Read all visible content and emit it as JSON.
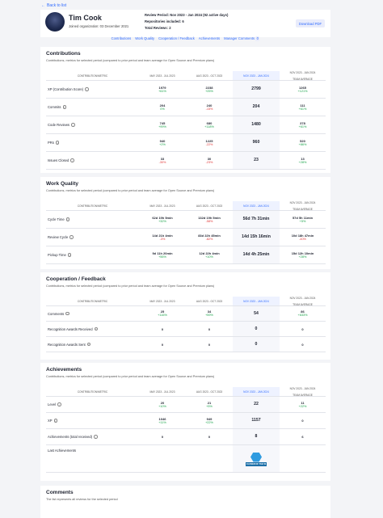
{
  "nav": {
    "back_label": "Back to list"
  },
  "profile": {
    "name": "Tim Cook",
    "joined": "Joined organization: 03 December 2021",
    "review_period_label": "Review Period:",
    "review_period_value": "Nov 2023 - Jan 2024 (92 active days)",
    "repositories_label": "Repositories included:",
    "repositories_value": "6",
    "total_reviews_label": "Total Reviews:",
    "total_reviews_value": "2",
    "download_label": "Download PDF"
  },
  "tabs": [
    {
      "label": "Contributions"
    },
    {
      "label": "Work Quality"
    },
    {
      "label": "Cooperation / Feedback"
    },
    {
      "label": "Achievements"
    },
    {
      "label": "Manager Comments",
      "badge": "0"
    }
  ],
  "columns": {
    "metric": "CONTRIBUTION/METRIC",
    "p1": "MAY 2023 - JUL 2023",
    "p2": "AUG 2023 - OCT 2023",
    "p3": "NOV 2023 - JAN 2024",
    "p4a": "NOV 2023 - JAN 2024",
    "p4b": "TEAM AVERAGE"
  },
  "sections": {
    "contributions": {
      "title": "Contributions",
      "subtitle": "Contributions, metrics for selected period (compared to prior period and team average for Open Source and Premium plans)",
      "rows": [
        {
          "label": "XP (Contribution Score)",
          "p1": "1979",
          "p1d": "+61%",
          "p2": "2238",
          "p2d": "+25%",
          "p3": "2799",
          "p4": "1265",
          "p4d": "+121%"
        },
        {
          "label": "Commits",
          "p1": "204",
          "p1d": "0%",
          "p2": "240",
          "p2d": "-15%",
          "p3": "204",
          "p4": "111",
          "p4d": "+61%"
        },
        {
          "label": "Code Reviews",
          "p1": "745",
          "p1d": "+99%",
          "p2": "680",
          "p2d": "+118%",
          "p3": "1480",
          "p4": "378",
          "p4d": "+61%"
        },
        {
          "label": "PRs",
          "p1": "940",
          "p1d": "+2%",
          "p2": "1225",
          "p2d": "-22%",
          "p3": "960",
          "p4": "520",
          "p4d": "+86%"
        },
        {
          "label": "Issues Closed",
          "p1": "33",
          "p1d": "-30%",
          "p2": "30",
          "p2d": "-23%",
          "p3": "23",
          "p4": "13",
          "p4d": "+28%"
        }
      ]
    },
    "quality": {
      "title": "Work Quality",
      "subtitle": "Contributions, metrics for selected period (compared to prior period and team average for Open Source and Premium plans)",
      "rows": [
        {
          "label": "Cycle Time",
          "p1": "62d 19h 5min",
          "p1d": "+32%",
          "p2": "132d 19h 5min",
          "p2d": "-58%",
          "p3": "56d 7h 31min",
          "p4": "57d 5h 11min",
          "p4d": "+5%"
        },
        {
          "label": "Review Cycle",
          "p1": "14d 21h 4min",
          "p1d": "-3%",
          "p2": "83d 22h 45min",
          "p2d": "-82%",
          "p3": "14d 15h 16min",
          "p4": "10d 18h 47min",
          "p4d": "-40%"
        },
        {
          "label": "Pickup Time",
          "p1": "9d 11h 20min",
          "p1d": "+56%",
          "p2": "12d 22h 4min",
          "p2d": "+10%",
          "p3": "14d 4h 25min",
          "p4": "15d 12h 10min",
          "p4d": "+28%"
        }
      ]
    },
    "cooperation": {
      "title": "Cooperation / Feedback",
      "subtitle": "Contributions, metrics for selected period (compared to prior period and team average for Open Source and Premium plans)",
      "rows": [
        {
          "label": "Comments",
          "p1": "25",
          "p1d": "+116%",
          "p2": "34",
          "p2d": "+59%",
          "p3": "54",
          "p4": "86",
          "p4d": "+633%"
        },
        {
          "label": "Recognition Awards Received",
          "p1": "0",
          "p1d": "",
          "p2": "0",
          "p2d": "",
          "p3": "0",
          "p4": "0",
          "p4d": ""
        },
        {
          "label": "Recognition Awards Sent",
          "p1": "0",
          "p1d": "",
          "p2": "0",
          "p2d": "",
          "p3": "0",
          "p4": "0",
          "p4d": ""
        }
      ]
    },
    "achievements": {
      "title": "Achievements",
      "subtitle": "Contributions, metrics for selected period (compared to prior period and team average for Open Source and Premium plans)",
      "rows": [
        {
          "label": "Level",
          "p1": "20",
          "p1d": "+10%",
          "p2": "21",
          "p2d": "+5%",
          "p3": "22",
          "p4": "11",
          "p4d": "+22%"
        },
        {
          "label": "XP",
          "p1": "1046",
          "p1d": "+11%",
          "p2": "949",
          "p2d": "+22%",
          "p3": "1157",
          "p4": "0",
          "p4d": ""
        },
        {
          "label": "Achievements (total received)",
          "p1": "0",
          "p1d": "",
          "p2": "0",
          "p2d": "",
          "p3": "8",
          "p4": "6",
          "p4d": ""
        },
        {
          "label": "Last Achievements",
          "p1": "",
          "p1d": "",
          "p2": "",
          "p2d": "",
          "p3": "",
          "p4": "",
          "p4d": ""
        }
      ],
      "badge_text": "CLOSER OF THE W"
    },
    "comments": {
      "title": "Comments",
      "subtitle": "The list represents all reviews for the selected period"
    }
  }
}
